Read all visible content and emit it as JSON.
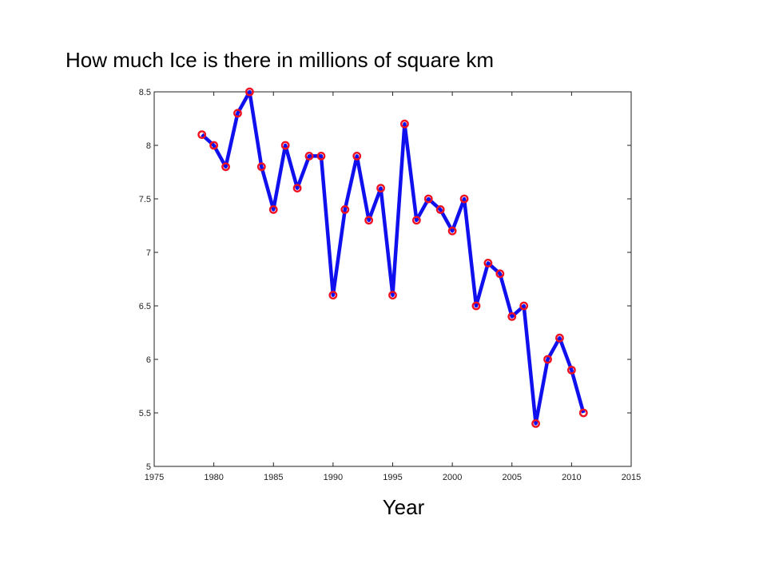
{
  "chart_data": {
    "type": "line",
    "title": "How much Ice is there in millions of square km",
    "xlabel": "Year",
    "ylabel": "",
    "xlim": [
      1975,
      2015
    ],
    "ylim": [
      5,
      8.5
    ],
    "xticks": [
      "1975",
      "1980",
      "1985",
      "1990",
      "1995",
      "2000",
      "2005",
      "2010",
      "2015"
    ],
    "yticks": [
      "5",
      "5.5",
      "6",
      "6.5",
      "7",
      "7.5",
      "8",
      "8.5"
    ],
    "grid": false,
    "line_color": "#1010ee",
    "marker_color": "#ee1122",
    "series": [
      {
        "x": [
          1979,
          1980,
          1981,
          1982,
          1983,
          1984,
          1985,
          1986,
          1987,
          1988,
          1989,
          1990,
          1991,
          1992,
          1993,
          1994,
          1995,
          1996,
          1997,
          1998,
          1999,
          2000,
          2001,
          2002,
          2003,
          2004,
          2005,
          2006,
          2007,
          2008,
          2009,
          2010,
          2011
        ],
        "values": [
          8.1,
          8.0,
          7.8,
          8.3,
          8.5,
          7.8,
          7.4,
          8.0,
          7.6,
          7.9,
          7.9,
          6.6,
          7.4,
          7.9,
          7.3,
          7.6,
          6.6,
          8.2,
          7.3,
          7.5,
          7.4,
          7.2,
          7.5,
          6.5,
          6.9,
          6.8,
          6.4,
          6.5,
          5.4,
          6.0,
          6.2,
          5.9,
          5.5
        ]
      }
    ]
  }
}
